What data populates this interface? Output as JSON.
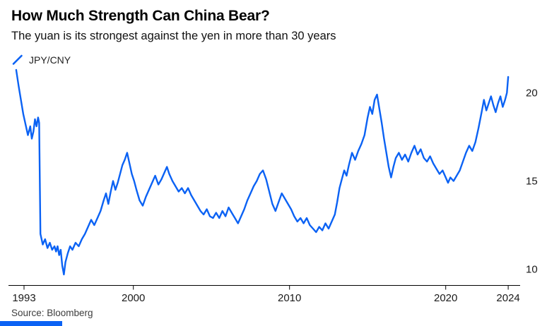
{
  "header": {
    "title": "How Much Strength Can China Bear?",
    "subtitle": "The yuan is its strongest against the yen in more than 30 years"
  },
  "legend": {
    "label": "JPY/CNY"
  },
  "footer": {
    "source": "Source: Bloomberg"
  },
  "colors": {
    "line": "#0b62f4",
    "axis": "#000000",
    "tick_text": "#1a1a1a"
  },
  "chart_data": {
    "type": "line",
    "title": "How Much Strength Can China Bear?",
    "subtitle": "The yuan is its strongest against the yen in more than 30 years",
    "xlabel": "",
    "ylabel": "",
    "xlim": [
      1992.5,
      2024.6
    ],
    "ylim": [
      9.1,
      21.3
    ],
    "xticks": [
      1993,
      2000,
      2010,
      2020,
      2024
    ],
    "yticks": [
      10,
      15,
      20
    ],
    "grid": false,
    "legend_position": "top-left",
    "yaxis_side": "right",
    "source": "Source: Bloomberg",
    "series": [
      {
        "name": "JPY/CNY",
        "x": [
          1992.5,
          1992.65,
          1992.8,
          1992.95,
          1993.1,
          1993.25,
          1993.4,
          1993.5,
          1993.6,
          1993.7,
          1993.8,
          1993.9,
          1993.97,
          1994.05,
          1994.2,
          1994.35,
          1994.5,
          1994.65,
          1994.8,
          1994.95,
          1995.05,
          1995.15,
          1995.25,
          1995.35,
          1995.45,
          1995.55,
          1995.65,
          1995.8,
          1995.95,
          1996.1,
          1996.3,
          1996.5,
          1996.7,
          1996.9,
          1997.1,
          1997.3,
          1997.5,
          1997.7,
          1997.9,
          1998.1,
          1998.25,
          1998.4,
          1998.55,
          1998.7,
          1998.85,
          1999.0,
          1999.15,
          1999.3,
          1999.45,
          1999.6,
          1999.75,
          1999.9,
          2000.05,
          2000.2,
          2000.4,
          2000.6,
          2000.8,
          2001.0,
          2001.2,
          2001.4,
          2001.6,
          2001.8,
          2002.0,
          2002.15,
          2002.3,
          2002.5,
          2002.7,
          2002.9,
          2003.1,
          2003.3,
          2003.5,
          2003.7,
          2003.9,
          2004.1,
          2004.3,
          2004.5,
          2004.7,
          2004.9,
          2005.1,
          2005.3,
          2005.5,
          2005.7,
          2005.9,
          2006.1,
          2006.3,
          2006.5,
          2006.7,
          2006.9,
          2007.1,
          2007.3,
          2007.5,
          2007.7,
          2007.9,
          2008.1,
          2008.3,
          2008.5,
          2008.7,
          2008.9,
          2009.1,
          2009.3,
          2009.5,
          2009.7,
          2009.9,
          2010.1,
          2010.3,
          2010.5,
          2010.7,
          2010.9,
          2011.1,
          2011.3,
          2011.5,
          2011.7,
          2011.9,
          2012.1,
          2012.3,
          2012.5,
          2012.7,
          2012.9,
          2013.05,
          2013.2,
          2013.35,
          2013.5,
          2013.65,
          2013.8,
          2014.0,
          2014.2,
          2014.4,
          2014.6,
          2014.8,
          2015.0,
          2015.15,
          2015.3,
          2015.45,
          2015.6,
          2015.75,
          2015.9,
          2016.05,
          2016.2,
          2016.35,
          2016.5,
          2016.65,
          2016.8,
          2017.0,
          2017.2,
          2017.4,
          2017.6,
          2017.8,
          2018.0,
          2018.2,
          2018.4,
          2018.6,
          2018.8,
          2019.0,
          2019.2,
          2019.4,
          2019.6,
          2019.8,
          2020.0,
          2020.15,
          2020.3,
          2020.5,
          2020.7,
          2020.9,
          2021.1,
          2021.3,
          2021.5,
          2021.7,
          2021.9,
          2022.1,
          2022.3,
          2022.45,
          2022.6,
          2022.75,
          2022.9,
          2023.05,
          2023.2,
          2023.35,
          2023.5,
          2023.65,
          2023.8,
          2023.92,
          2024.0
        ],
        "values": [
          21.3,
          20.4,
          19.6,
          18.8,
          18.2,
          17.6,
          18.1,
          17.4,
          17.8,
          18.5,
          18.1,
          18.6,
          18.3,
          12.0,
          11.4,
          11.7,
          11.2,
          11.5,
          11.1,
          11.3,
          11.0,
          11.3,
          10.8,
          11.1,
          10.2,
          9.7,
          10.4,
          10.9,
          11.3,
          11.1,
          11.5,
          11.3,
          11.7,
          12.0,
          12.4,
          12.8,
          12.5,
          12.9,
          13.3,
          13.9,
          14.3,
          13.7,
          14.4,
          15.0,
          14.5,
          14.9,
          15.4,
          15.9,
          16.2,
          16.6,
          16.0,
          15.4,
          15.0,
          14.5,
          13.9,
          13.6,
          14.1,
          14.5,
          14.9,
          15.3,
          14.8,
          15.1,
          15.5,
          15.8,
          15.4,
          15.0,
          14.7,
          14.4,
          14.6,
          14.3,
          14.6,
          14.2,
          13.9,
          13.6,
          13.3,
          13.1,
          13.4,
          13.0,
          12.9,
          13.2,
          12.9,
          13.3,
          13.0,
          13.5,
          13.2,
          12.9,
          12.6,
          13.0,
          13.4,
          13.9,
          14.3,
          14.7,
          15.0,
          15.4,
          15.6,
          15.1,
          14.4,
          13.7,
          13.3,
          13.8,
          14.3,
          14.0,
          13.7,
          13.4,
          13.0,
          12.7,
          12.9,
          12.6,
          12.9,
          12.5,
          12.3,
          12.1,
          12.4,
          12.2,
          12.6,
          12.3,
          12.7,
          13.1,
          13.8,
          14.6,
          15.1,
          15.6,
          15.3,
          15.9,
          16.6,
          16.2,
          16.7,
          17.1,
          17.6,
          18.6,
          19.2,
          18.8,
          19.6,
          19.9,
          19.1,
          18.3,
          17.4,
          16.6,
          15.8,
          15.2,
          15.8,
          16.3,
          16.6,
          16.2,
          16.5,
          16.1,
          16.6,
          17.0,
          16.5,
          16.8,
          16.3,
          16.1,
          16.4,
          16.0,
          15.7,
          15.4,
          15.6,
          15.2,
          14.9,
          15.2,
          15.0,
          15.3,
          15.6,
          16.1,
          16.6,
          17.0,
          16.7,
          17.2,
          18.0,
          18.9,
          19.6,
          19.0,
          19.4,
          19.8,
          19.3,
          18.9,
          19.4,
          19.8,
          19.2,
          19.6,
          20.0,
          20.9
        ]
      }
    ]
  }
}
